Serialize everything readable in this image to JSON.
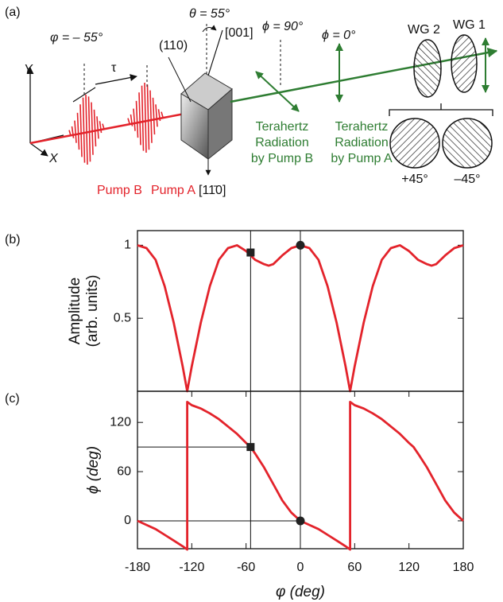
{
  "panel_labels": [
    "(a)",
    "(b)",
    "(c)"
  ],
  "diagram": {
    "axis_y": "Y",
    "axis_x": "X",
    "pump_angle": "φ = – 55°",
    "delay": "τ",
    "plane": "(110)",
    "theta": "θ = 55°",
    "dir_001": "[001]",
    "dir_1m10": "[11̄0]",
    "phi_90": "ϕ = 90°",
    "phi_0": "ϕ = 0°",
    "wg2": "WG 2",
    "wg1": "WG 1",
    "thz_b": [
      "Terahertz",
      "Radiation",
      "by Pump B"
    ],
    "thz_a": [
      "Terahertz",
      "Radiation",
      "by Pump A"
    ],
    "pump_b": "Pump B",
    "pump_a": "Pump A",
    "plus45": "+45°",
    "minus45": "–45°"
  },
  "chart_data": [
    {
      "type": "line",
      "ylabel": [
        "Amplitude",
        "(arb. units)"
      ],
      "xlim": [
        -180,
        180
      ],
      "ylim": [
        0,
        1.1
      ],
      "yticks": [
        0.5,
        1
      ],
      "series": [
        {
          "color": "#e3232b",
          "x": [
            -180,
            -170,
            -160,
            -150,
            -140,
            -130,
            -125,
            -120,
            -110,
            -100,
            -90,
            -80,
            -70,
            -60,
            -50,
            -40,
            -35,
            -30,
            -20,
            -10,
            0,
            10,
            20,
            30,
            40,
            50,
            55,
            60,
            70,
            80,
            90,
            100,
            110,
            120,
            130,
            140,
            145,
            150,
            160,
            170,
            180
          ],
          "values": [
            1,
            0.98,
            0.9,
            0.72,
            0.47,
            0.17,
            0,
            0.17,
            0.47,
            0.72,
            0.9,
            0.98,
            1,
            0.96,
            0.9,
            0.87,
            0.86,
            0.87,
            0.93,
            0.98,
            1,
            0.98,
            0.9,
            0.72,
            0.47,
            0.17,
            0,
            0.17,
            0.47,
            0.72,
            0.9,
            0.98,
            1,
            0.96,
            0.9,
            0.87,
            0.86,
            0.87,
            0.93,
            0.98,
            1
          ]
        }
      ],
      "markers": [
        {
          "shape": "square",
          "x": -55,
          "y": 0.95
        },
        {
          "shape": "circle",
          "x": 0,
          "y": 1
        }
      ],
      "guide_h": false
    },
    {
      "type": "line",
      "ylabel": "ϕ (deg)",
      "xlabel": "φ (deg)",
      "xlim": [
        -180,
        180
      ],
      "ylim": [
        -34,
        158
      ],
      "xticks": [
        -180,
        -120,
        -60,
        0,
        60,
        120,
        180
      ],
      "yticks": [
        0,
        60,
        120
      ],
      "series": [
        {
          "color": "#e3232b",
          "x": [
            -180,
            -170,
            -160,
            -150,
            -140,
            -130,
            -125,
            -125,
            -120,
            -110,
            -100,
            -90,
            -80,
            -70,
            -60,
            -55,
            -50,
            -40,
            -30,
            -20,
            -10,
            0,
            10,
            20,
            30,
            40,
            50,
            55,
            55,
            60,
            70,
            80,
            90,
            100,
            110,
            120,
            125,
            130,
            140,
            150,
            160,
            170,
            180
          ],
          "values": [
            0,
            -5,
            -10,
            -17,
            -24,
            -31,
            -35,
            145,
            141,
            137,
            131,
            124,
            115,
            106,
            95,
            90,
            82,
            65,
            45,
            25,
            10,
            0,
            -5,
            -10,
            -17,
            -24,
            -31,
            -35,
            145,
            141,
            137,
            131,
            124,
            115,
            106,
            95,
            90,
            82,
            65,
            45,
            25,
            10,
            0
          ]
        }
      ],
      "markers": [
        {
          "shape": "square",
          "x": -55,
          "y": 90
        },
        {
          "shape": "circle",
          "x": 0,
          "y": 0
        }
      ],
      "guide_h": true
    }
  ]
}
